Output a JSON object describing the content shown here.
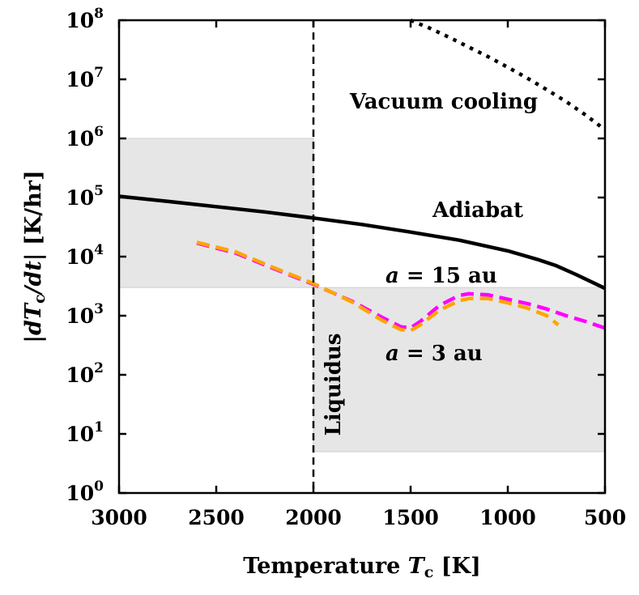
{
  "chart_data": {
    "type": "line",
    "xlabel": "Temperature",
    "xlabel_symbol": "T",
    "xlabel_subscript": "c",
    "xlabel_unit": "[K]",
    "ylabel": "|dTc/dt|",
    "ylabel_unit": "[K/hr]",
    "x_range": [
      3000,
      500
    ],
    "x_reversed": true,
    "x_ticks": [
      3000,
      2500,
      2000,
      1500,
      1000,
      500
    ],
    "y_scale": "log",
    "y_range": [
      1,
      100000000
    ],
    "y_tick_exponents": [
      0,
      1,
      2,
      3,
      4,
      5,
      6,
      7,
      8
    ],
    "y_tick_base": "10",
    "shaded_regions": [
      {
        "name": "solid-region",
        "x": [
          3000,
          2000
        ],
        "y": [
          3000,
          1000000
        ],
        "color": "#e6e6e6"
      },
      {
        "name": "liquid-region",
        "x": [
          2000,
          500
        ],
        "y": [
          5,
          3000
        ],
        "color": "#e6e6e6"
      }
    ],
    "vertical_line": {
      "name": "Liquidus",
      "x": 2000
    },
    "series": [
      {
        "name": "Vacuum cooling",
        "color": "#000000",
        "style": "dotted",
        "x": [
          1500,
          1400,
          1300,
          1200,
          1100,
          1000,
          900,
          800,
          700,
          600,
          500
        ],
        "y": [
          100000000,
          73000000,
          51000000,
          35000000,
          24000000,
          16000000,
          10500000,
          6700000,
          4200000,
          2500000,
          1400000
        ]
      },
      {
        "name": "Adiabat",
        "color": "#000000",
        "style": "solid",
        "x": [
          3000,
          2750,
          2500,
          2250,
          2000,
          1750,
          1500,
          1250,
          1000,
          850,
          750,
          650,
          500
        ],
        "y": [
          105000,
          86000,
          70000,
          57000,
          45000,
          35000,
          26000,
          19000,
          12500,
          9000,
          7000,
          5000,
          2900
        ]
      },
      {
        "name": "a = 15 au",
        "color": "#ff00ff",
        "style": "dashed",
        "x": [
          2600,
          2400,
          2200,
          2000,
          1800,
          1650,
          1550,
          1500,
          1450,
          1350,
          1250,
          1200,
          1100,
          1000,
          900,
          800,
          700,
          600,
          500
        ],
        "y": [
          17000,
          11500,
          6200,
          3400,
          1750,
          950,
          650,
          620,
          800,
          1500,
          2200,
          2350,
          2250,
          1900,
          1600,
          1300,
          1000,
          800,
          620
        ]
      },
      {
        "name": "a = 3 au",
        "color": "#ffa500",
        "style": "dashed",
        "x": [
          2600,
          2400,
          2200,
          2000,
          1800,
          1650,
          1550,
          1500,
          1450,
          1350,
          1250,
          1200,
          1100,
          1000,
          900,
          800,
          740
        ],
        "y": [
          17500,
          12000,
          6400,
          3500,
          1700,
          850,
          580,
          560,
          700,
          1250,
          1800,
          1950,
          1950,
          1650,
          1350,
          1000,
          700
        ]
      }
    ],
    "annotations": [
      {
        "name": "vacuum-cooling-label",
        "text": "Vacuum cooling"
      },
      {
        "name": "adiabat-label",
        "text": "Adiabat"
      },
      {
        "name": "a15-label",
        "text": "a = 15 au"
      },
      {
        "name": "a3-label",
        "text": "a = 3 au"
      },
      {
        "name": "liquidus-label",
        "text": "Liquidus"
      }
    ]
  }
}
